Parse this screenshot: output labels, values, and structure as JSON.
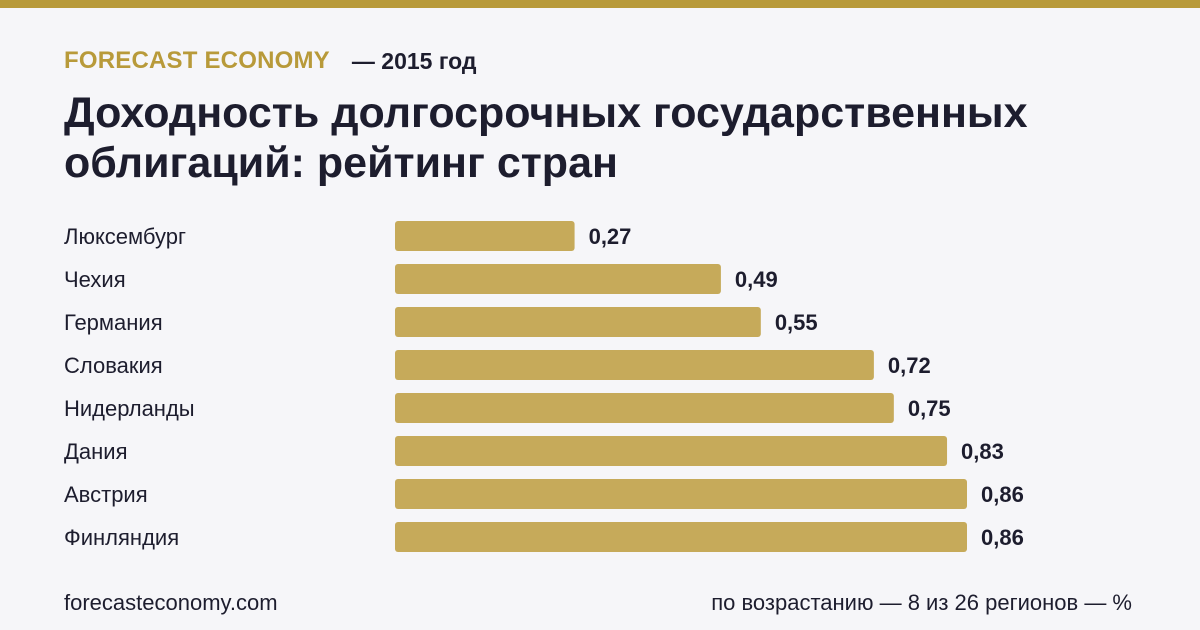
{
  "header": {
    "brand": "FORECAST ECONOMY",
    "year_note": "— 2015 год"
  },
  "title": "Доходность долгосрочных государственных облигаций: рейтинг стран",
  "footer": {
    "site": "forecasteconomy.com",
    "note": "по возрастанию — 8 из 26 регионов — %"
  },
  "colors": {
    "accent": "#b89a3a",
    "bar": "#c6aa5a",
    "text": "#1d1d2e",
    "background": "#f6f6f9"
  },
  "chart_data": {
    "type": "bar",
    "orientation": "horizontal",
    "title": "Доходность долгосрочных государственных облигаций: рейтинг стран",
    "unit": "%",
    "categories": [
      "Люксембург",
      "Чехия",
      "Германия",
      "Словакия",
      "Нидерланды",
      "Дания",
      "Австрия",
      "Финляндия"
    ],
    "values": [
      0.27,
      0.49,
      0.55,
      0.72,
      0.75,
      0.83,
      0.86,
      0.86
    ],
    "value_labels": [
      "0,27",
      "0,49",
      "0,55",
      "0,72",
      "0,75",
      "0,83",
      "0,86",
      "0,86"
    ],
    "xlim": [
      0,
      0.86
    ],
    "grid": false,
    "legend": "none"
  }
}
